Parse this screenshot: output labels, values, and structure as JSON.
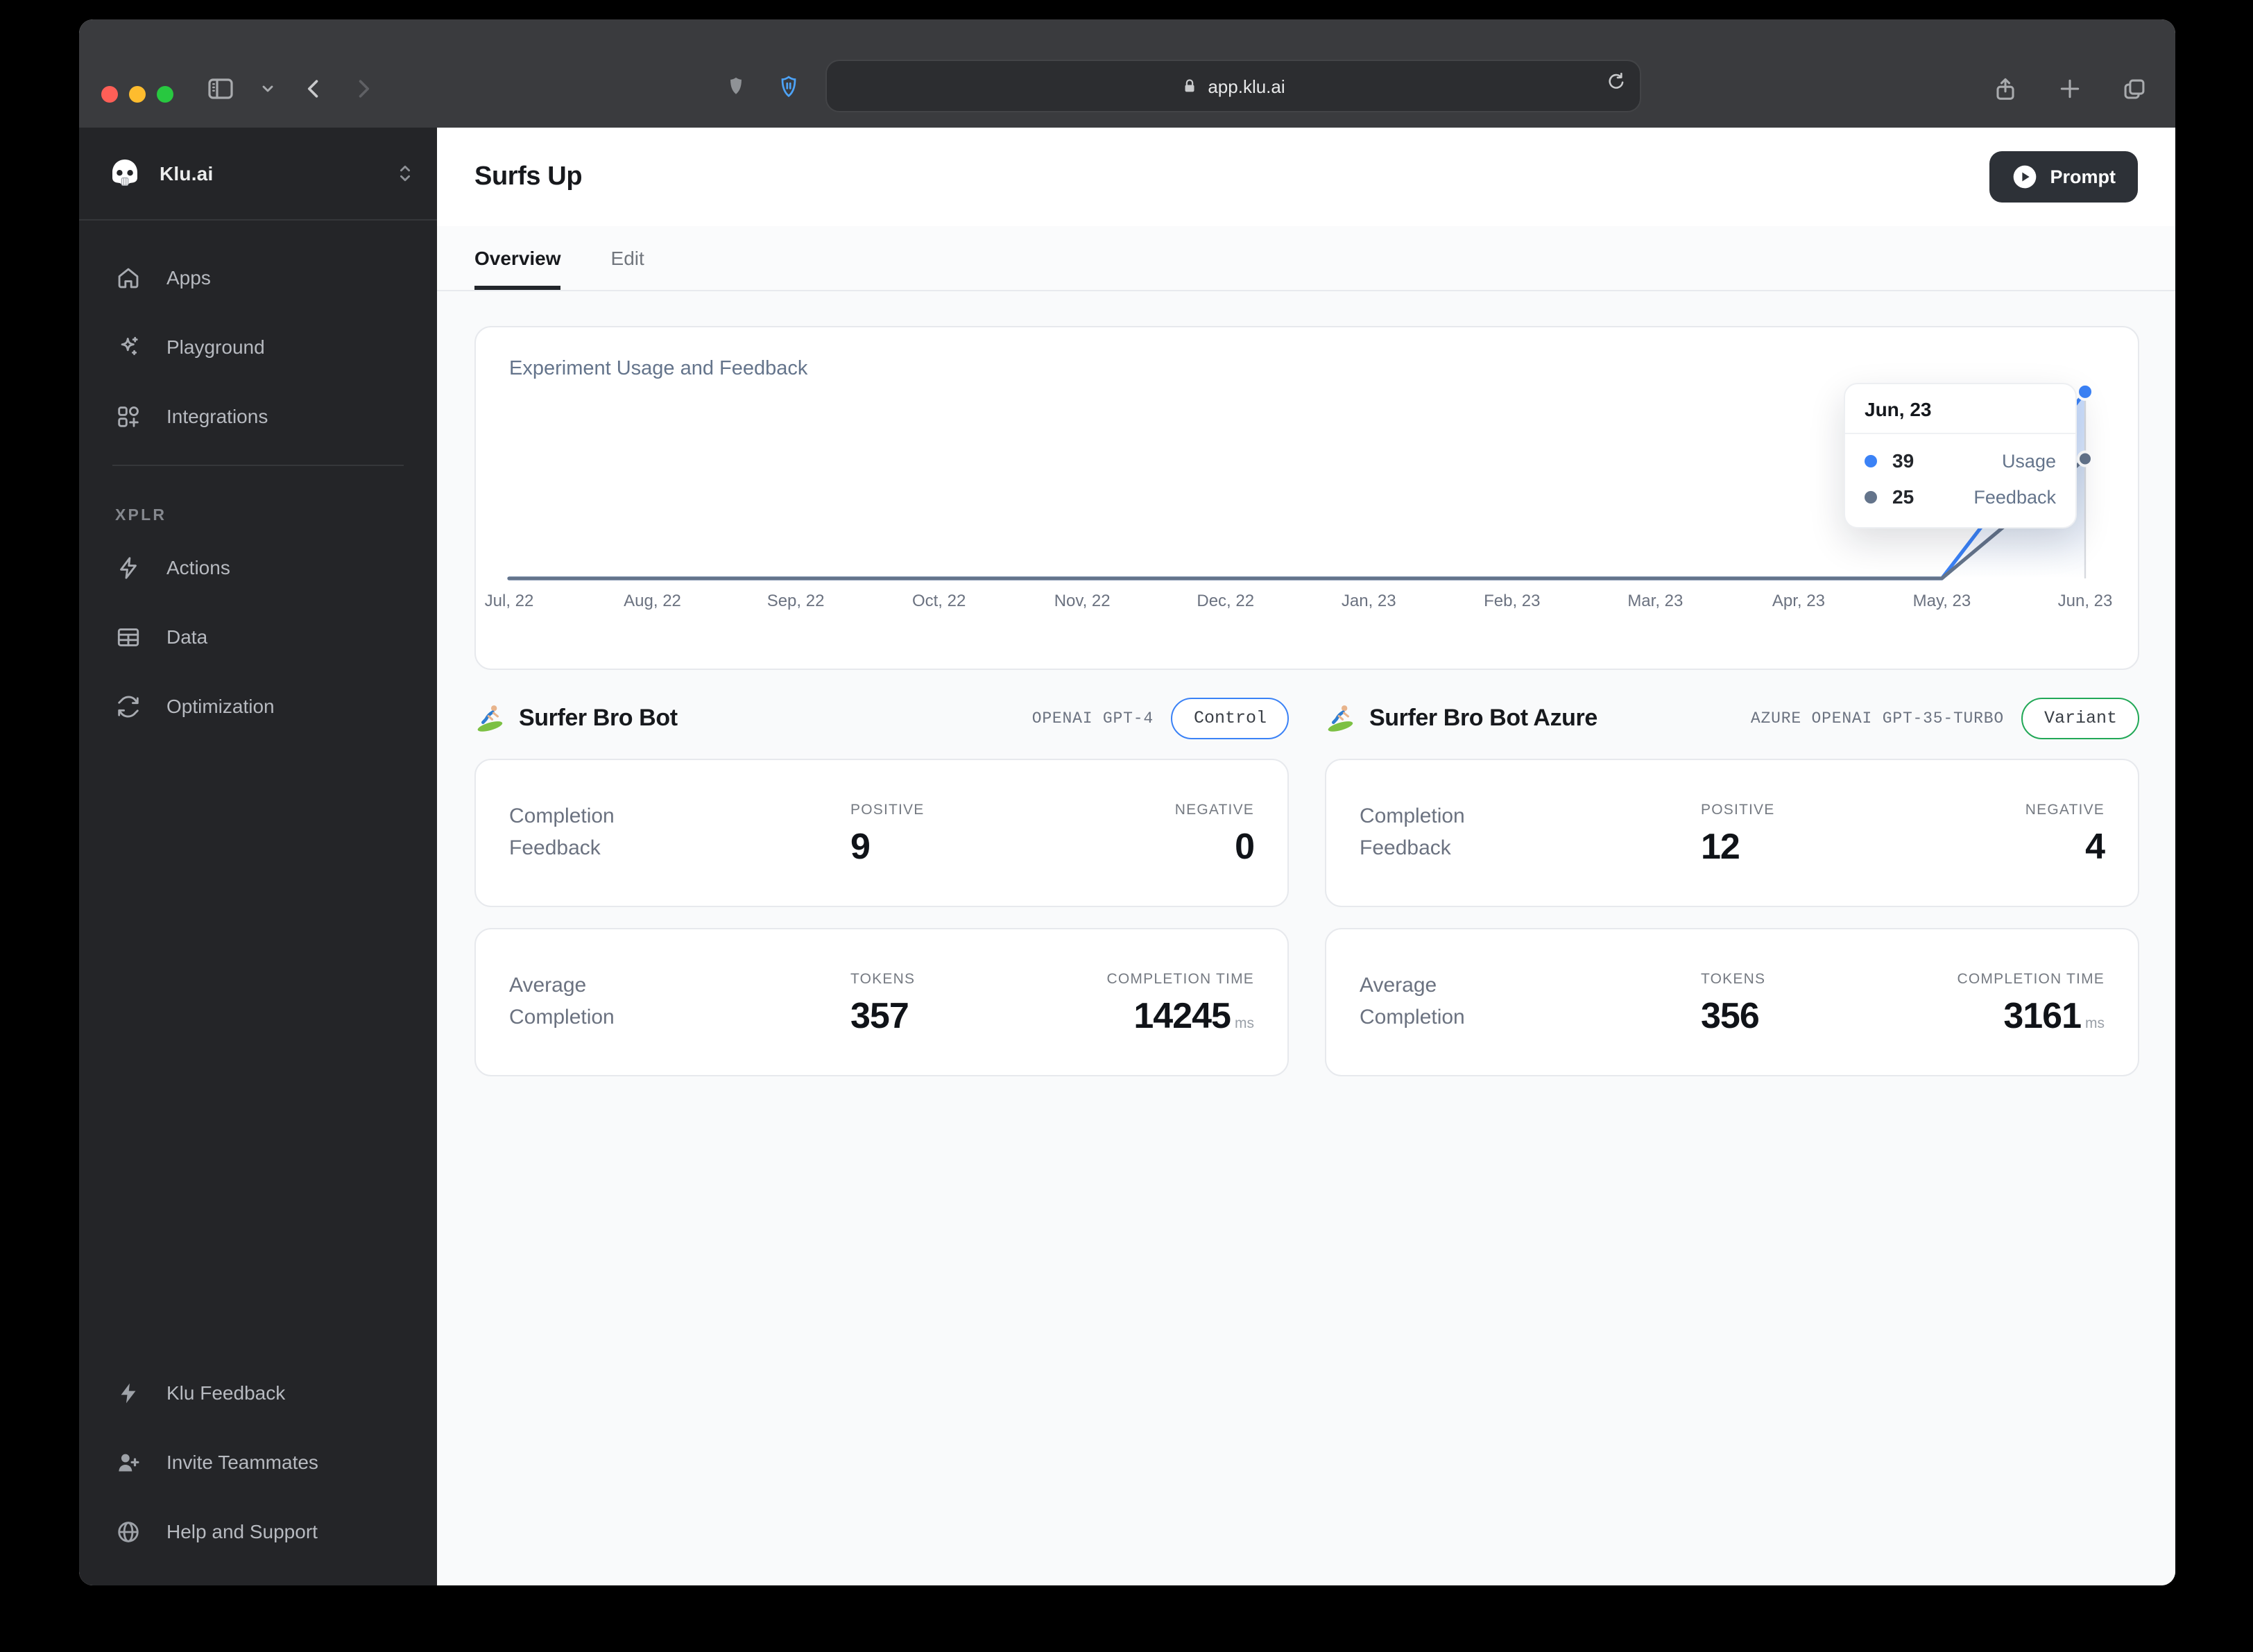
{
  "browser": {
    "url": "app.klu.ai"
  },
  "sidebar": {
    "workspace": "Klu.ai",
    "items": [
      {
        "label": "Apps",
        "icon": "home-icon"
      },
      {
        "label": "Playground",
        "icon": "sparkles-icon"
      },
      {
        "label": "Integrations",
        "icon": "integrations-icon"
      }
    ],
    "section_label": "XPLR",
    "xplr_items": [
      {
        "label": "Actions",
        "icon": "lightning-icon"
      },
      {
        "label": "Data",
        "icon": "table-icon"
      },
      {
        "label": "Optimization",
        "icon": "refresh-icon"
      }
    ],
    "footer_items": [
      {
        "label": "Klu Feedback",
        "icon": "lightning-filled-icon"
      },
      {
        "label": "Invite Teammates",
        "icon": "person-plus-icon"
      },
      {
        "label": "Help and Support",
        "icon": "globe-icon"
      }
    ]
  },
  "header": {
    "title": "Surfs Up",
    "prompt_label": "Prompt"
  },
  "tabs": {
    "overview": "Overview",
    "edit": "Edit"
  },
  "chart_data": {
    "type": "line",
    "title": "Experiment Usage and Feedback",
    "x": [
      "Jul, 22",
      "Aug, 22",
      "Sep, 22",
      "Oct, 22",
      "Nov, 22",
      "Dec, 22",
      "Jan, 23",
      "Feb, 23",
      "Mar, 23",
      "Apr, 23",
      "May, 23",
      "Jun, 23"
    ],
    "series": [
      {
        "name": "Usage",
        "color": "#3b82f6",
        "values": [
          0,
          0,
          0,
          0,
          0,
          0,
          0,
          0,
          0,
          0,
          0,
          39
        ]
      },
      {
        "name": "Feedback",
        "color": "#64748b",
        "values": [
          0,
          0,
          0,
          0,
          0,
          0,
          0,
          0,
          0,
          0,
          0,
          25
        ]
      }
    ],
    "ylim": [
      0,
      40
    ],
    "grid": false,
    "legend": "none",
    "tooltip": {
      "label": "Jun, 23",
      "rows": [
        {
          "value": 39,
          "name": "Usage"
        },
        {
          "value": 25,
          "name": "Feedback"
        }
      ]
    }
  },
  "bots": [
    {
      "name": "Surfer Bro Bot",
      "model": "OPENAI GPT-4",
      "badge": "Control",
      "badge_color": "#3b82f6",
      "feedback": {
        "label": "Completion Feedback",
        "positive_label": "POSITIVE",
        "positive": "9",
        "negative_label": "NEGATIVE",
        "negative": "0"
      },
      "average": {
        "label": "Average Completion",
        "tokens_label": "TOKENS",
        "tokens": "357",
        "time_label": "COMPLETION TIME",
        "time": "14245",
        "time_unit": "ms"
      }
    },
    {
      "name": "Surfer Bro Bot Azure",
      "model": "AZURE OPENAI GPT-35-TURBO",
      "badge": "Variant",
      "badge_color": "#22a857",
      "feedback": {
        "label": "Completion Feedback",
        "positive_label": "POSITIVE",
        "positive": "12",
        "negative_label": "NEGATIVE",
        "negative": "4"
      },
      "average": {
        "label": "Average Completion",
        "tokens_label": "TOKENS",
        "tokens": "356",
        "time_label": "COMPLETION TIME",
        "time": "3161",
        "time_unit": "ms"
      }
    }
  ]
}
